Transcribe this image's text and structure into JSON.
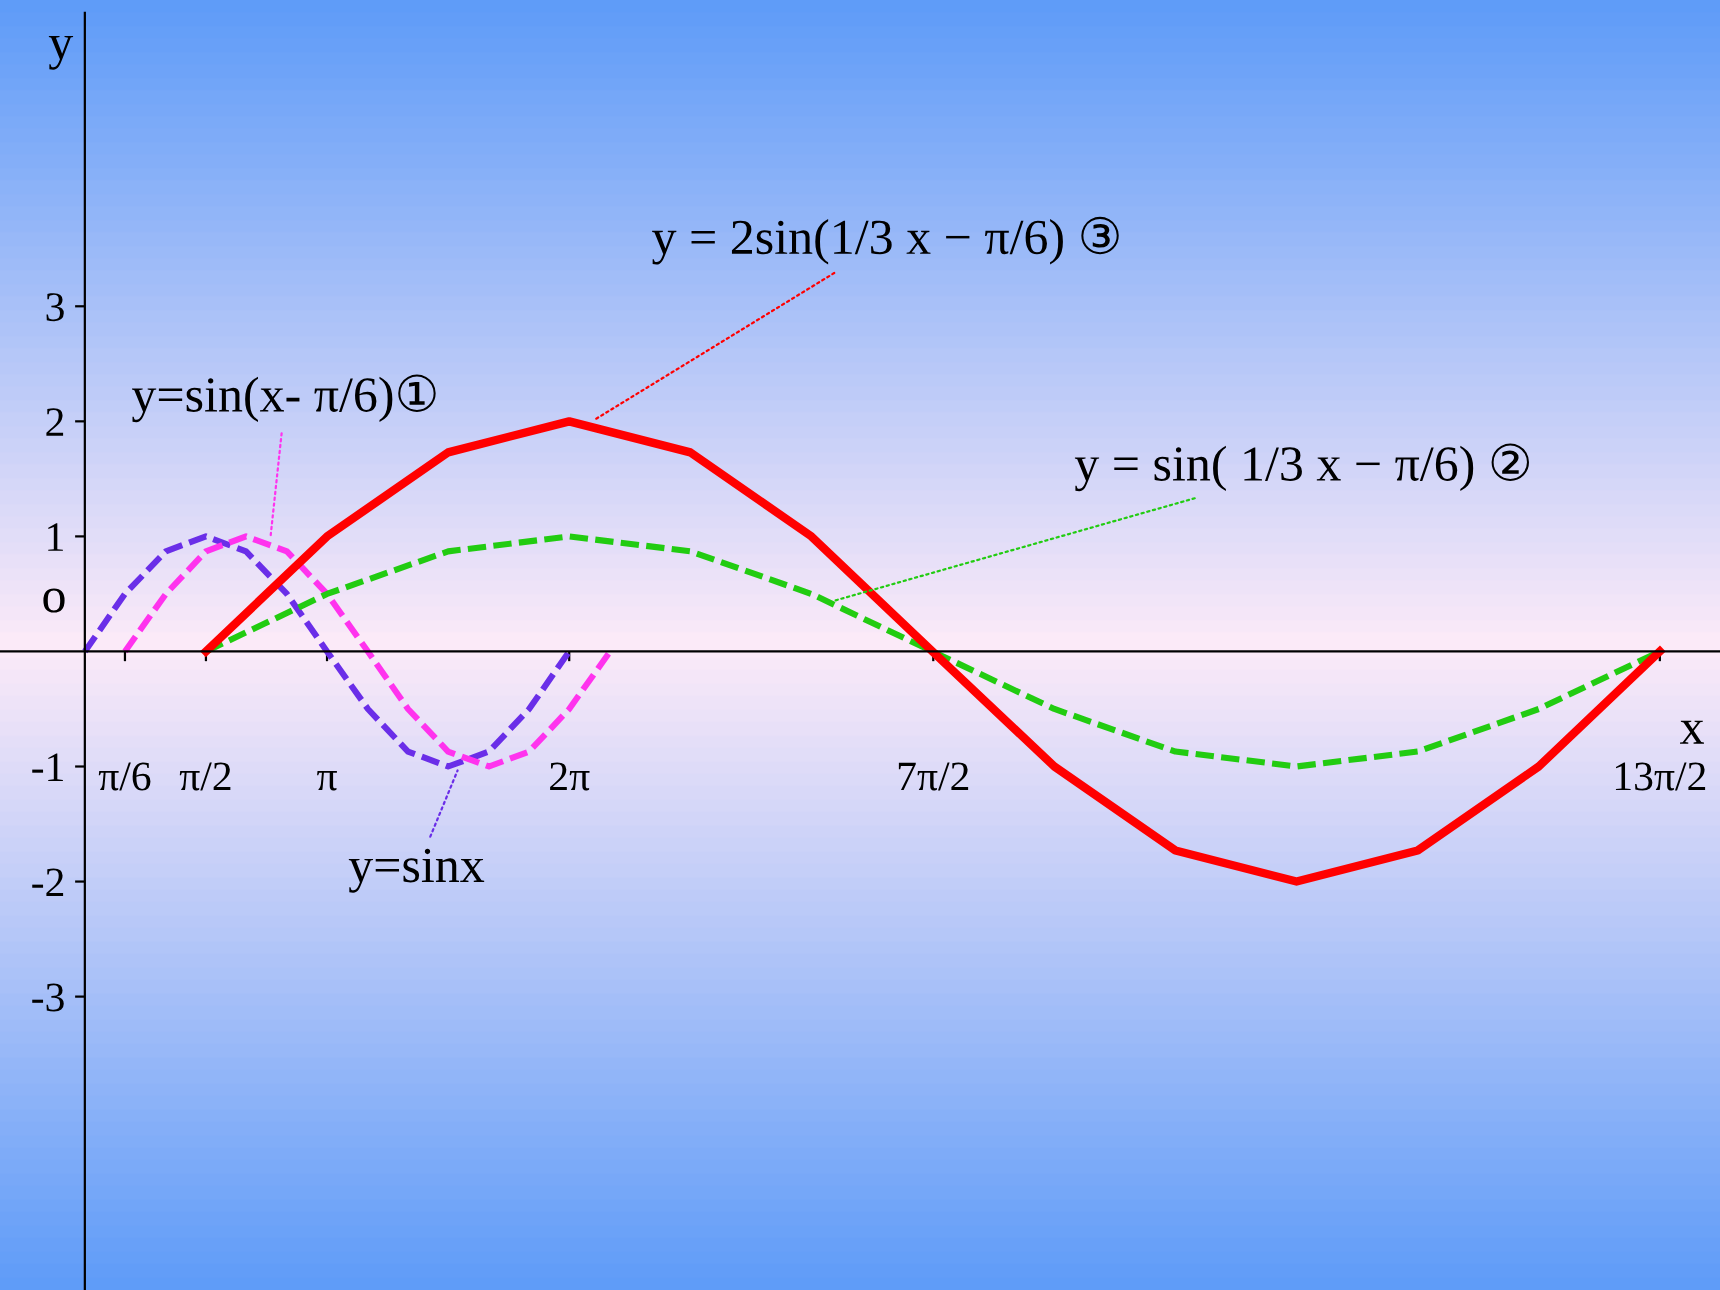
{
  "chart_data": {
    "type": "line",
    "xlabel": "x",
    "ylabel": "y",
    "xlim": [
      -1.1,
      21.2
    ],
    "ylim": [
      -5.55,
      5.55
    ],
    "xticks": [
      {
        "value": 0.52,
        "label": "π/6"
      },
      {
        "value": 1.57,
        "label": "π/2"
      },
      {
        "value": 3.14,
        "label": "π"
      },
      {
        "value": 6.28,
        "label": "2π"
      },
      {
        "value": 11.0,
        "label": "7π/2"
      },
      {
        "value": 20.42,
        "label": "13π/2"
      }
    ],
    "yticks": [
      -3,
      -2,
      -1,
      1,
      2,
      3
    ],
    "grid": false,
    "series": [
      {
        "color": "#6a2ee8",
        "line_style": "dashed",
        "x": [
          0,
          0.52,
          1.05,
          1.57,
          2.09,
          2.62,
          3.14,
          3.67,
          4.19,
          4.71,
          5.24,
          5.76,
          6.28
        ],
        "values": [
          0,
          0.5,
          0.87,
          1,
          0.87,
          0.5,
          0,
          -0.5,
          -0.87,
          -1,
          -0.87,
          -0.5,
          0
        ]
      },
      {
        "color": "#ff33ee",
        "line_style": "dashed",
        "x": [
          0.52,
          1.05,
          1.57,
          2.09,
          2.62,
          3.14,
          3.67,
          4.19,
          4.71,
          5.24,
          5.76,
          6.28,
          6.81
        ],
        "values": [
          0,
          0.5,
          0.87,
          1,
          0.87,
          0.5,
          0,
          -0.5,
          -0.87,
          -1,
          -0.87,
          -0.5,
          0
        ]
      },
      {
        "color": "#22cc11",
        "line_style": "dashed",
        "x": [
          1.57,
          3.14,
          4.71,
          6.28,
          7.85,
          9.42,
          10.99,
          12.57,
          14.14,
          15.71,
          17.28,
          18.85,
          20.42
        ],
        "values": [
          0,
          0.5,
          0.87,
          1,
          0.87,
          0.5,
          0,
          -0.5,
          -0.87,
          -1,
          -0.87,
          -0.5,
          0
        ]
      },
      {
        "color": "#ff0000",
        "line_style": "solid",
        "x": [
          1.57,
          3.14,
          4.71,
          6.28,
          7.85,
          9.42,
          10.99,
          12.57,
          14.14,
          15.71,
          17.28,
          18.85,
          20.42
        ],
        "values": [
          0,
          1,
          1.73,
          2,
          1.73,
          1,
          0,
          -1,
          -1.73,
          -2,
          -1.73,
          -1,
          0
        ]
      }
    ],
    "annotations": [
      "o",
      {
        "text": "y=sin(x- π/6)①",
        "x": 2.4,
        "y": 0.95
      },
      {
        "text": "y = sin( 1/3 x − π/6) ②",
        "x": 9.66,
        "y": 0.43
      },
      {
        "text": "y = 2sin(1/3 x − π/6) ③",
        "x": 6.55,
        "y": 1.99
      },
      {
        "text": "y=sinx",
        "x": 4.86,
        "y": -0.99
      }
    ]
  }
}
